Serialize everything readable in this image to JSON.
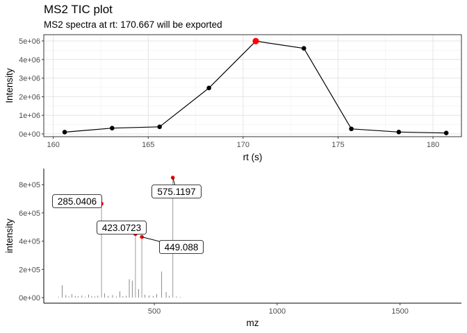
{
  "title": "MS2 TIC plot",
  "subtitle": "MS2 spectra at rt: 170.667 will be exported",
  "chart_data": [
    {
      "type": "line",
      "xlabel": "rt (s)",
      "ylabel": "Intensity",
      "xlim": [
        159.5,
        181.5
      ],
      "ylim": [
        0,
        5000000
      ],
      "xticks": [
        160,
        165,
        170,
        175,
        180
      ],
      "xtick_labels": [
        "160",
        "165",
        "170",
        "175",
        "180"
      ],
      "yticks": [
        0,
        1000000,
        2000000,
        3000000,
        4000000,
        5000000
      ],
      "ytick_labels": [
        "0e+00",
        "1e+06",
        "2e+06",
        "3e+06",
        "4e+06",
        "5e+06"
      ],
      "grid": true,
      "x": [
        160.6,
        163.1,
        165.6,
        168.2,
        170.667,
        173.2,
        175.7,
        178.2,
        180.7
      ],
      "y": [
        95000,
        310000,
        380000,
        2470000,
        4990000,
        4600000,
        270000,
        100000,
        50000
      ],
      "highlight_index": 4,
      "point_color": "#000000",
      "highlight_color": "#ff0000"
    },
    {
      "type": "bar",
      "subtype": "stick-spectrum",
      "xlabel": "mz",
      "ylabel": "intensity",
      "xlim": [
        50,
        1750
      ],
      "ylim": [
        0,
        850000
      ],
      "xticks": [
        500,
        1000,
        1500
      ],
      "xtick_labels": [
        "500",
        "1000",
        "1500"
      ],
      "yticks": [
        0,
        200000,
        400000,
        600000,
        800000
      ],
      "ytick_labels": [
        "0e+00",
        "2e+05",
        "4e+05",
        "6e+05",
        "8e+05"
      ],
      "grid": false,
      "peaks_mz": [
        110,
        125,
        140,
        152,
        165,
        178,
        190,
        205,
        218,
        232,
        245,
        258,
        270,
        285.0406,
        298,
        312,
        330,
        345,
        360,
        372,
        385,
        398,
        410,
        423.0723,
        436,
        449.088,
        462,
        478,
        495,
        510,
        530,
        548,
        560,
        575.1197,
        590,
        605
      ],
      "peaks_int": [
        5000,
        88000,
        18000,
        8000,
        25000,
        12000,
        9000,
        15000,
        6000,
        22000,
        10000,
        8000,
        14000,
        665000,
        30000,
        12000,
        18000,
        8000,
        45000,
        10000,
        12000,
        130000,
        120000,
        450000,
        60000,
        430000,
        20000,
        15000,
        12000,
        25000,
        185000,
        40000,
        12000,
        850000,
        8000,
        5000
      ],
      "labeled_peaks": [
        {
          "mz": 285.0406,
          "label": "285.0406"
        },
        {
          "mz": 423.0723,
          "label": "423.0723"
        },
        {
          "mz": 449.088,
          "label": "449.088"
        },
        {
          "mz": 575.1197,
          "label": "575.1197"
        }
      ],
      "marker_color": "#ff0000"
    }
  ]
}
